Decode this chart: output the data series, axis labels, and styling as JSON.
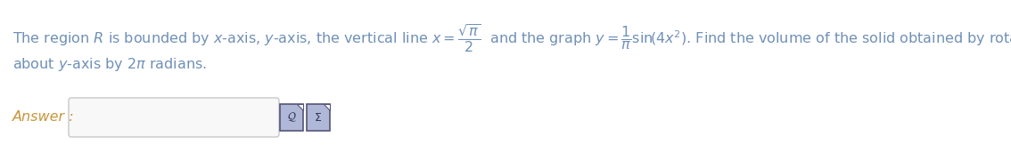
{
  "bg_color": "#ffffff",
  "text_color": "#7090b8",
  "answer_label_color": "#c8963c",
  "font_size": 11.5,
  "line1": "The region $\\mathit{R}$ is bounded by $x$-axis, $y$-axis, the vertical line $x = \\dfrac{\\sqrt{\\pi}}{2}$  and the graph $y = \\dfrac{1}{\\pi}\\mathrm{sin}\\!\\left(4x^2\\right)$. Find the volume of the solid obtained by rotating $\\mathit{R}$",
  "line2": "about $y$-axis by $2\\pi$ radians.",
  "answer_label": "Answer :",
  "box_color": "#f8f8f8",
  "box_edge_color": "#c8c8c8",
  "icon1_face": "#b0b8d8",
  "icon2_face": "#b0b8d8",
  "icon_edge": "#555577"
}
